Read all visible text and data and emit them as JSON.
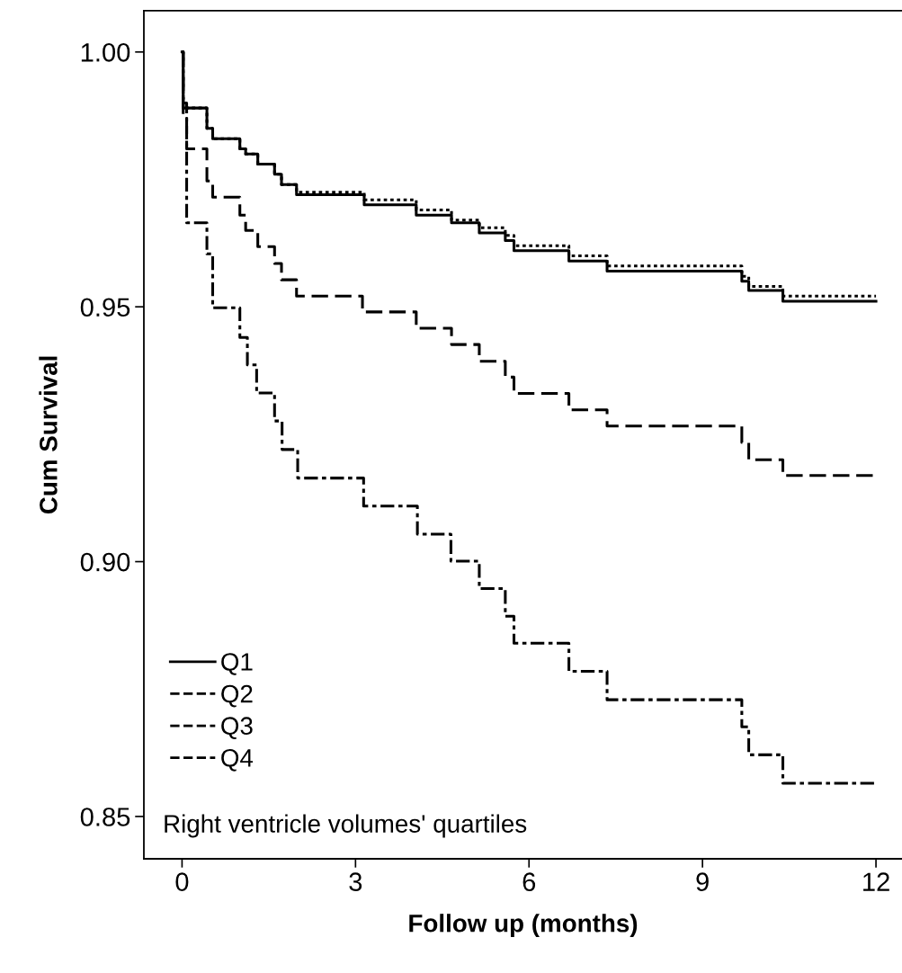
{
  "chart_data": {
    "type": "step",
    "xlabel": "Follow up (months)",
    "ylabel": "Cum Survival",
    "legend_title": "Right ventricle volumes' quartiles",
    "legend": "bottom left",
    "grid": false,
    "xlim": [
      -0.66,
      12.45
    ],
    "ylim": [
      0.8417,
      1.0081
    ],
    "xticks": [
      0,
      3,
      6,
      9,
      12
    ],
    "yticks": [
      {
        "value": 0.85,
        "label": "0.85"
      },
      {
        "value": 0.9,
        "label": "0.90"
      },
      {
        "value": 0.95,
        "label": "0.95"
      },
      {
        "value": 1.0,
        "label": "1.00"
      }
    ],
    "series": [
      {
        "name": "Q1",
        "color": "#000000",
        "line_style": "solid",
        "x": [
          0,
          0.02,
          0.43,
          0.53,
          1.0,
          1.1,
          1.31,
          1.6,
          1.72,
          1.98,
          3.15,
          4.05,
          4.66,
          5.14,
          5.59,
          5.74,
          6.69,
          7.35,
          9.68,
          9.8,
          10.39,
          12
        ],
        "values": [
          1.0,
          0.989,
          0.985,
          0.983,
          0.981,
          0.98,
          0.978,
          0.976,
          0.974,
          0.972,
          0.97,
          0.968,
          0.9665,
          0.9645,
          0.963,
          0.961,
          0.959,
          0.957,
          0.955,
          0.9532,
          0.9511,
          0.9511
        ]
      },
      {
        "name": "Q2",
        "color": "#000000",
        "line_style": "dotted",
        "x": [
          0,
          0.02,
          0.43,
          0.53,
          1.0,
          1.1,
          1.31,
          1.6,
          1.72,
          1.98,
          3.15,
          4.05,
          4.66,
          5.14,
          5.59,
          5.74,
          6.69,
          7.35,
          9.68,
          9.8,
          10.39,
          12
        ],
        "values": [
          1.0,
          0.989,
          0.985,
          0.983,
          0.981,
          0.98,
          0.978,
          0.976,
          0.974,
          0.9725,
          0.971,
          0.969,
          0.967,
          0.9655,
          0.964,
          0.962,
          0.96,
          0.958,
          0.956,
          0.954,
          0.9521,
          0.9521
        ]
      },
      {
        "name": "Q3",
        "color": "#000000",
        "line_style": "dashed",
        "x": [
          0,
          0.02,
          0.08,
          0.43,
          0.53,
          1.0,
          1.1,
          1.31,
          1.6,
          1.72,
          1.98,
          3.12,
          4.05,
          4.66,
          5.14,
          5.59,
          5.74,
          6.69,
          7.35,
          9.68,
          9.8,
          10.39,
          12
        ],
        "values": [
          1.0,
          0.987,
          0.981,
          0.9747,
          0.9715,
          0.968,
          0.965,
          0.9618,
          0.9585,
          0.9553,
          0.9521,
          0.949,
          0.9458,
          0.9426,
          0.9393,
          0.9362,
          0.933,
          0.9298,
          0.9266,
          0.9234,
          0.92,
          0.9169,
          0.9169
        ]
      },
      {
        "name": "Q4",
        "color": "#000000",
        "line_style": "dashdot",
        "x": [
          0,
          0.02,
          0.08,
          0.43,
          0.53,
          1.0,
          1.13,
          1.29,
          1.6,
          1.73,
          2.0,
          3.14,
          4.07,
          4.65,
          5.14,
          5.59,
          5.74,
          6.69,
          7.35,
          9.68,
          9.8,
          10.39,
          12
        ],
        "values": [
          1.0,
          0.99,
          0.9665,
          0.9604,
          0.9498,
          0.944,
          0.9386,
          0.9331,
          0.9276,
          0.922,
          0.9164,
          0.9109,
          0.9054,
          0.9001,
          0.8947,
          0.8893,
          0.884,
          0.8785,
          0.8729,
          0.8676,
          0.8621,
          0.8565,
          0.8565
        ]
      }
    ]
  }
}
